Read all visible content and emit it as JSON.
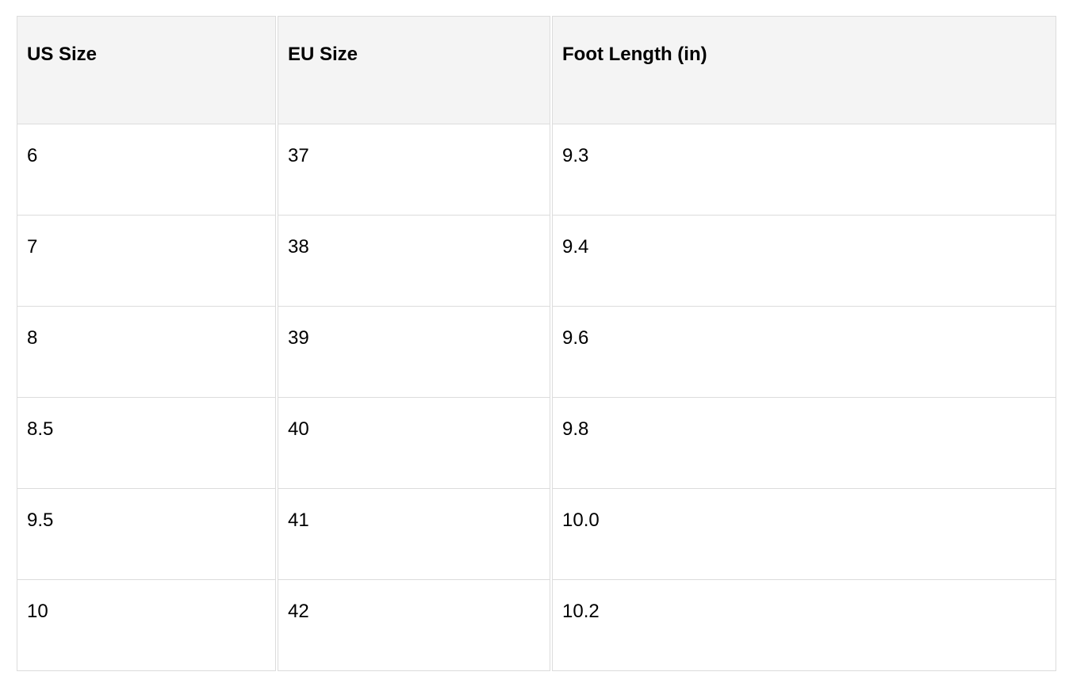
{
  "table": {
    "headers": [
      "US Size",
      "EU Size",
      "Foot Length (in)"
    ],
    "rows": [
      [
        "6",
        "37",
        "9.3"
      ],
      [
        "7",
        "38",
        "9.4"
      ],
      [
        "8",
        "39",
        "9.6"
      ],
      [
        "8.5",
        "40",
        "9.8"
      ],
      [
        "9.5",
        "41",
        "10.0"
      ],
      [
        "10",
        "42",
        "10.2"
      ]
    ]
  }
}
